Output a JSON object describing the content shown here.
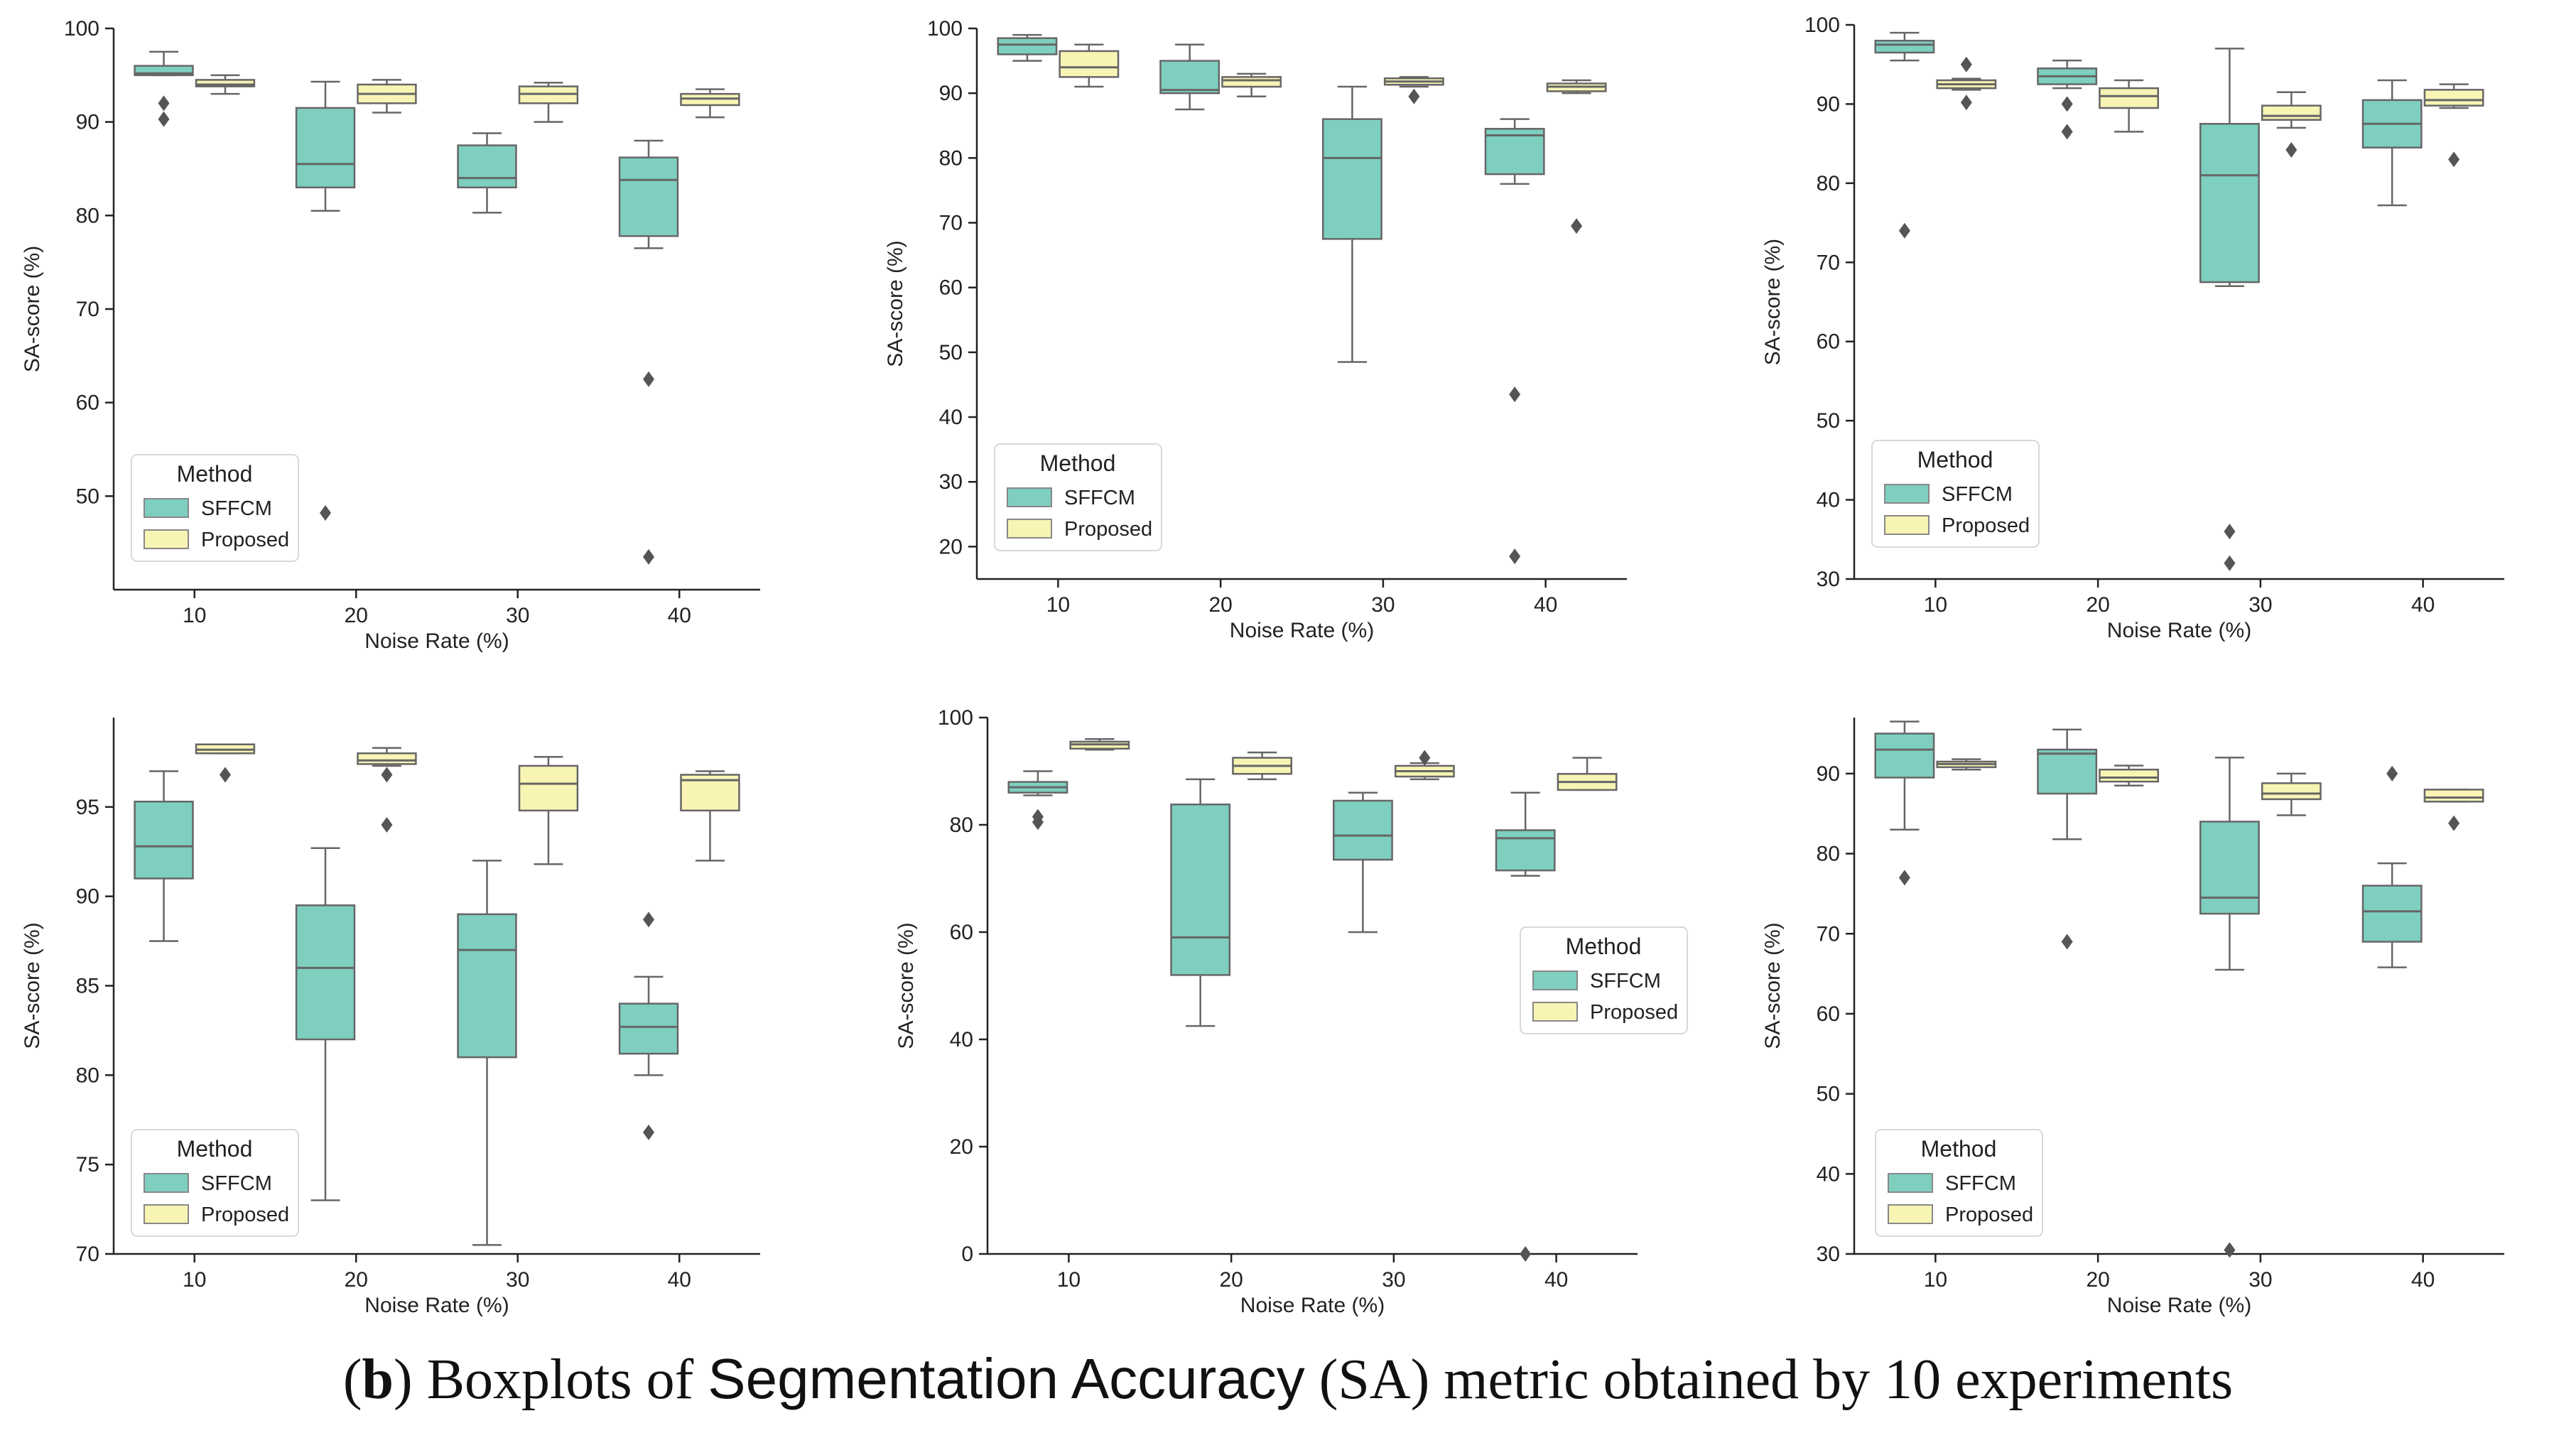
{
  "caption": {
    "open_paren": "(",
    "letter": "b",
    "close_paren": ") Boxplots of ",
    "metric_name": "Segmentation Accuracy",
    "tail": " (SA) metric obtained by 10 experiments"
  },
  "colors": {
    "SFFCM": "#7ecfc0",
    "Proposed": "#f8f4b4",
    "stroke": "#666666"
  },
  "chart_data": [
    {
      "type": "box",
      "ylabel": "SA-score (%)",
      "xlabel": "Noise Rate (%)",
      "categories": [
        "10",
        "20",
        "30",
        "40"
      ],
      "yticks": [
        50,
        60,
        70,
        80,
        90,
        100
      ],
      "ylim": [
        40,
        100
      ],
      "legend": {
        "title": "Method",
        "position": "lower-left",
        "entries": [
          "SFFCM",
          "Proposed"
        ]
      },
      "series": [
        {
          "name": "SFFCM",
          "boxes": [
            {
              "whislo": 95,
              "q1": 95,
              "med": 95.2,
              "q3": 96,
              "whishi": 97.5,
              "fliers": [
                92,
                90.3
              ]
            },
            {
              "whislo": 80.5,
              "q1": 83,
              "med": 85.5,
              "q3": 91.5,
              "whishi": 94.3,
              "fliers": [
                48.2
              ]
            },
            {
              "whislo": 80.3,
              "q1": 83,
              "med": 84,
              "q3": 87.5,
              "whishi": 88.8,
              "fliers": []
            },
            {
              "whislo": 76.5,
              "q1": 77.8,
              "med": 83.8,
              "q3": 86.2,
              "whishi": 88,
              "fliers": [
                62.5,
                43.5
              ]
            }
          ]
        },
        {
          "name": "Proposed",
          "boxes": [
            {
              "whislo": 93,
              "q1": 93.8,
              "med": 94,
              "q3": 94.5,
              "whishi": 95,
              "fliers": []
            },
            {
              "whislo": 91,
              "q1": 92,
              "med": 93,
              "q3": 94,
              "whishi": 94.5,
              "fliers": []
            },
            {
              "whislo": 90,
              "q1": 92,
              "med": 93,
              "q3": 93.8,
              "whishi": 94.2,
              "fliers": []
            },
            {
              "whislo": 90.5,
              "q1": 91.8,
              "med": 92.5,
              "q3": 93,
              "whishi": 93.5,
              "fliers": []
            }
          ]
        }
      ]
    },
    {
      "type": "box",
      "ylabel": "SA-score (%)",
      "xlabel": "Noise Rate (%)",
      "categories": [
        "10",
        "20",
        "30",
        "40"
      ],
      "yticks": [
        20,
        30,
        40,
        50,
        60,
        70,
        80,
        90,
        100
      ],
      "ylim": [
        15,
        100
      ],
      "legend": {
        "title": "Method",
        "position": "lower-left",
        "entries": [
          "SFFCM",
          "Proposed"
        ]
      },
      "series": [
        {
          "name": "SFFCM",
          "boxes": [
            {
              "whislo": 95,
              "q1": 96,
              "med": 97.5,
              "q3": 98.5,
              "whishi": 99,
              "fliers": []
            },
            {
              "whislo": 87.5,
              "q1": 90,
              "med": 90.5,
              "q3": 95,
              "whishi": 97.5,
              "fliers": []
            },
            {
              "whislo": 48.5,
              "q1": 67.5,
              "med": 80,
              "q3": 86,
              "whishi": 91,
              "fliers": []
            },
            {
              "whislo": 76,
              "q1": 77.5,
              "med": 83.5,
              "q3": 84.5,
              "whishi": 86,
              "fliers": [
                43.5,
                18.5
              ]
            }
          ]
        },
        {
          "name": "Proposed",
          "boxes": [
            {
              "whislo": 91,
              "q1": 92.5,
              "med": 94,
              "q3": 96.5,
              "whishi": 97.5,
              "fliers": []
            },
            {
              "whislo": 89.5,
              "q1": 91,
              "med": 92,
              "q3": 92.5,
              "whishi": 93,
              "fliers": []
            },
            {
              "whislo": 91,
              "q1": 91.3,
              "med": 91.8,
              "q3": 92.3,
              "whishi": 92.5,
              "fliers": [
                89.5
              ]
            },
            {
              "whislo": 90,
              "q1": 90.3,
              "med": 91,
              "q3": 91.5,
              "whishi": 92,
              "fliers": [
                69.5
              ]
            }
          ]
        }
      ]
    },
    {
      "type": "box",
      "ylabel": "SA-score (%)",
      "xlabel": "Noise Rate (%)",
      "categories": [
        "10",
        "20",
        "30",
        "40"
      ],
      "yticks": [
        30,
        40,
        50,
        60,
        70,
        80,
        90,
        100
      ],
      "ylim": [
        30,
        100
      ],
      "legend": {
        "title": "Method",
        "position": "lower-left",
        "entries": [
          "SFFCM",
          "Proposed"
        ]
      },
      "series": [
        {
          "name": "SFFCM",
          "boxes": [
            {
              "whislo": 95.5,
              "q1": 96.5,
              "med": 97.5,
              "q3": 98,
              "whishi": 99,
              "fliers": [
                74
              ]
            },
            {
              "whislo": 92,
              "q1": 92.5,
              "med": 93.5,
              "q3": 94.5,
              "whishi": 95.5,
              "fliers": [
                90,
                86.5
              ]
            },
            {
              "whislo": 67,
              "q1": 67.5,
              "med": 81,
              "q3": 87.5,
              "whishi": 97,
              "fliers": [
                36,
                32
              ]
            },
            {
              "whislo": 77.2,
              "q1": 84.5,
              "med": 87.5,
              "q3": 90.5,
              "whishi": 93,
              "fliers": []
            }
          ]
        },
        {
          "name": "Proposed",
          "boxes": [
            {
              "whislo": 91.8,
              "q1": 92,
              "med": 92.5,
              "q3": 93,
              "whishi": 93.2,
              "fliers": [
                95,
                90.2
              ]
            },
            {
              "whislo": 86.5,
              "q1": 89.5,
              "med": 91,
              "q3": 92,
              "whishi": 93,
              "fliers": []
            },
            {
              "whislo": 87,
              "q1": 88,
              "med": 88.5,
              "q3": 89.8,
              "whishi": 91.5,
              "fliers": [
                84.2
              ]
            },
            {
              "whislo": 89.5,
              "q1": 89.8,
              "med": 90.5,
              "q3": 91.8,
              "whishi": 92.5,
              "fliers": [
                83
              ]
            }
          ]
        }
      ]
    },
    {
      "type": "box",
      "ylabel": "SA-score (%)",
      "xlabel": "Noise Rate (%)",
      "categories": [
        "10",
        "20",
        "30",
        "40"
      ],
      "yticks": [
        70,
        75,
        80,
        85,
        90,
        95
      ],
      "ylim": [
        70,
        100
      ],
      "legend": {
        "title": "Method",
        "position": "lower-left",
        "entries": [
          "SFFCM",
          "Proposed"
        ]
      },
      "series": [
        {
          "name": "SFFCM",
          "boxes": [
            {
              "whislo": 87.5,
              "q1": 91,
              "med": 92.8,
              "q3": 95.3,
              "whishi": 97,
              "fliers": []
            },
            {
              "whislo": 73,
              "q1": 82,
              "med": 86,
              "q3": 89.5,
              "whishi": 92.7,
              "fliers": []
            },
            {
              "whislo": 70.5,
              "q1": 81,
              "med": 87,
              "q3": 89,
              "whishi": 92,
              "fliers": []
            },
            {
              "whislo": 80,
              "q1": 81.2,
              "med": 82.7,
              "q3": 84,
              "whishi": 85.5,
              "fliers": [
                88.7,
                76.8
              ]
            }
          ]
        },
        {
          "name": "Proposed",
          "boxes": [
            {
              "whislo": 98,
              "q1": 98,
              "med": 98.2,
              "q3": 98.5,
              "whishi": 98.5,
              "fliers": [
                96.8
              ]
            },
            {
              "whislo": 97.3,
              "q1": 97.4,
              "med": 97.6,
              "q3": 98,
              "whishi": 98.3,
              "fliers": [
                96.8,
                94
              ]
            },
            {
              "whislo": 91.8,
              "q1": 94.8,
              "med": 96.3,
              "q3": 97.3,
              "whishi": 97.8,
              "fliers": []
            },
            {
              "whislo": 92,
              "q1": 94.8,
              "med": 96.5,
              "q3": 96.8,
              "whishi": 97,
              "fliers": []
            }
          ]
        }
      ]
    },
    {
      "type": "box",
      "ylabel": "SA-score (%)",
      "xlabel": "Noise Rate (%)",
      "categories": [
        "10",
        "20",
        "30",
        "40"
      ],
      "yticks": [
        0,
        20,
        40,
        60,
        80,
        100
      ],
      "ylim": [
        0,
        100
      ],
      "legend": {
        "title": "Method",
        "position": "center-right",
        "entries": [
          "SFFCM",
          "Proposed"
        ]
      },
      "series": [
        {
          "name": "SFFCM",
          "boxes": [
            {
              "whislo": 85.5,
              "q1": 86,
              "med": 87,
              "q3": 88,
              "whishi": 90,
              "fliers": [
                81.5,
                80.5
              ]
            },
            {
              "whislo": 42.5,
              "q1": 52,
              "med": 59,
              "q3": 83.8,
              "whishi": 88.5,
              "fliers": []
            },
            {
              "whislo": 60,
              "q1": 73.5,
              "med": 78,
              "q3": 84.5,
              "whishi": 86,
              "fliers": []
            },
            {
              "whislo": 70.5,
              "q1": 71.5,
              "med": 77.5,
              "q3": 79,
              "whishi": 86,
              "fliers": [
                0
              ]
            }
          ]
        },
        {
          "name": "Proposed",
          "boxes": [
            {
              "whislo": 94,
              "q1": 94.2,
              "med": 95,
              "q3": 95.5,
              "whishi": 96,
              "fliers": []
            },
            {
              "whislo": 88.5,
              "q1": 89.5,
              "med": 91,
              "q3": 92.5,
              "whishi": 93.5,
              "fliers": []
            },
            {
              "whislo": 88.5,
              "q1": 89,
              "med": 90,
              "q3": 91,
              "whishi": 91.5,
              "fliers": [
                92.5
              ]
            },
            {
              "whislo": 86.5,
              "q1": 86.5,
              "med": 88,
              "q3": 89.5,
              "whishi": 92.5,
              "fliers": []
            }
          ]
        }
      ]
    },
    {
      "type": "box",
      "ylabel": "SA-score (%)",
      "xlabel": "Noise Rate (%)",
      "categories": [
        "10",
        "20",
        "30",
        "40"
      ],
      "yticks": [
        30,
        40,
        50,
        60,
        70,
        80,
        90
      ],
      "ylim": [
        30,
        97
      ],
      "legend": {
        "title": "Method",
        "position": "lower-left",
        "entries": [
          "SFFCM",
          "Proposed"
        ]
      },
      "series": [
        {
          "name": "SFFCM",
          "boxes": [
            {
              "whislo": 83,
              "q1": 89.5,
              "med": 93,
              "q3": 95,
              "whishi": 96.5,
              "fliers": [
                77
              ]
            },
            {
              "whislo": 81.8,
              "q1": 87.5,
              "med": 92.5,
              "q3": 93,
              "whishi": 95.5,
              "fliers": [
                69
              ]
            },
            {
              "whislo": 65.5,
              "q1": 72.5,
              "med": 74.5,
              "q3": 84,
              "whishi": 92,
              "fliers": [
                30.5
              ]
            },
            {
              "whislo": 65.8,
              "q1": 69,
              "med": 72.8,
              "q3": 76,
              "whishi": 78.8,
              "fliers": [
                90
              ]
            }
          ]
        },
        {
          "name": "Proposed",
          "boxes": [
            {
              "whislo": 90.5,
              "q1": 90.8,
              "med": 91.2,
              "q3": 91.5,
              "whishi": 91.8,
              "fliers": []
            },
            {
              "whislo": 88.5,
              "q1": 89,
              "med": 89.5,
              "q3": 90.5,
              "whishi": 91,
              "fliers": []
            },
            {
              "whislo": 84.8,
              "q1": 86.8,
              "med": 87.5,
              "q3": 88.8,
              "whishi": 90,
              "fliers": []
            },
            {
              "whislo": 86.5,
              "q1": 86.5,
              "med": 87,
              "q3": 88,
              "whishi": 88,
              "fliers": [
                83.8
              ]
            }
          ]
        }
      ]
    }
  ]
}
